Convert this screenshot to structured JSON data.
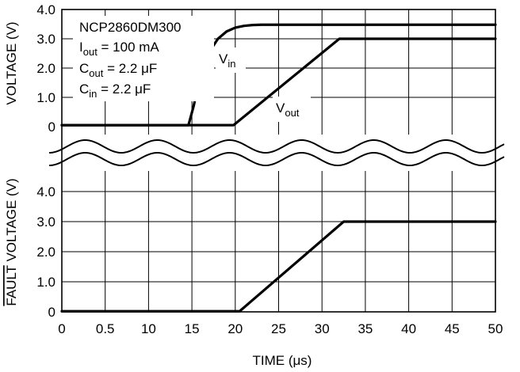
{
  "chart_data": [
    {
      "type": "line",
      "panel": "top",
      "xlabel": "",
      "ylabel": "VOLTAGE (V)",
      "xlim": [
        0,
        50
      ],
      "ylim": [
        0,
        4.0
      ],
      "y_ticks": [
        "0",
        "1.0",
        "2.0",
        "3.0",
        "4.0"
      ],
      "grid": true,
      "annotations": {
        "device": "NCP2860DM300",
        "iout_label": "I",
        "iout_sub": "out",
        "iout_value": " = 100 mA",
        "cout_label": "C",
        "cout_sub": "out",
        "cout_value": " = 2.2 μF",
        "cin_label": "C",
        "cin_sub": "in",
        "cin_value": " = 2.2 μF"
      },
      "series": [
        {
          "label_main": "V",
          "label_sub": "in",
          "x": [
            0,
            14.6,
            15.2,
            16.0,
            17.0,
            18.0,
            19.0,
            20.0,
            21.0,
            22.0,
            23.0,
            24.0,
            50
          ],
          "y": [
            0.05,
            0.05,
            0.7,
            1.8,
            2.55,
            3.0,
            3.25,
            3.38,
            3.44,
            3.47,
            3.48,
            3.48,
            3.48
          ]
        },
        {
          "label_main": "V",
          "label_sub": "out",
          "x": [
            0,
            19.8,
            32.0,
            50
          ],
          "y": [
            0.05,
            0.05,
            3.0,
            3.0
          ]
        }
      ]
    },
    {
      "type": "line",
      "panel": "bottom",
      "xlabel": "TIME (μs)",
      "ylabel": "FAULT VOLTAGE (V)",
      "ylabel_overline": "FAULT",
      "ylabel_rest": " VOLTAGE (V)",
      "xlim": [
        0,
        50
      ],
      "ylim": [
        0,
        4.0
      ],
      "x_ticks": [
        "0",
        "0.5",
        "10",
        "15",
        "20",
        "25",
        "30",
        "35",
        "40",
        "45",
        "50"
      ],
      "y_ticks": [
        "0",
        "1.0",
        "2.0",
        "3.0",
        "4.0"
      ],
      "grid": true,
      "series": [
        {
          "x": [
            0,
            17.0,
            20.5,
            32.5,
            50
          ],
          "y": [
            0.02,
            0.02,
            0.02,
            3.0,
            3.0
          ]
        }
      ]
    }
  ]
}
